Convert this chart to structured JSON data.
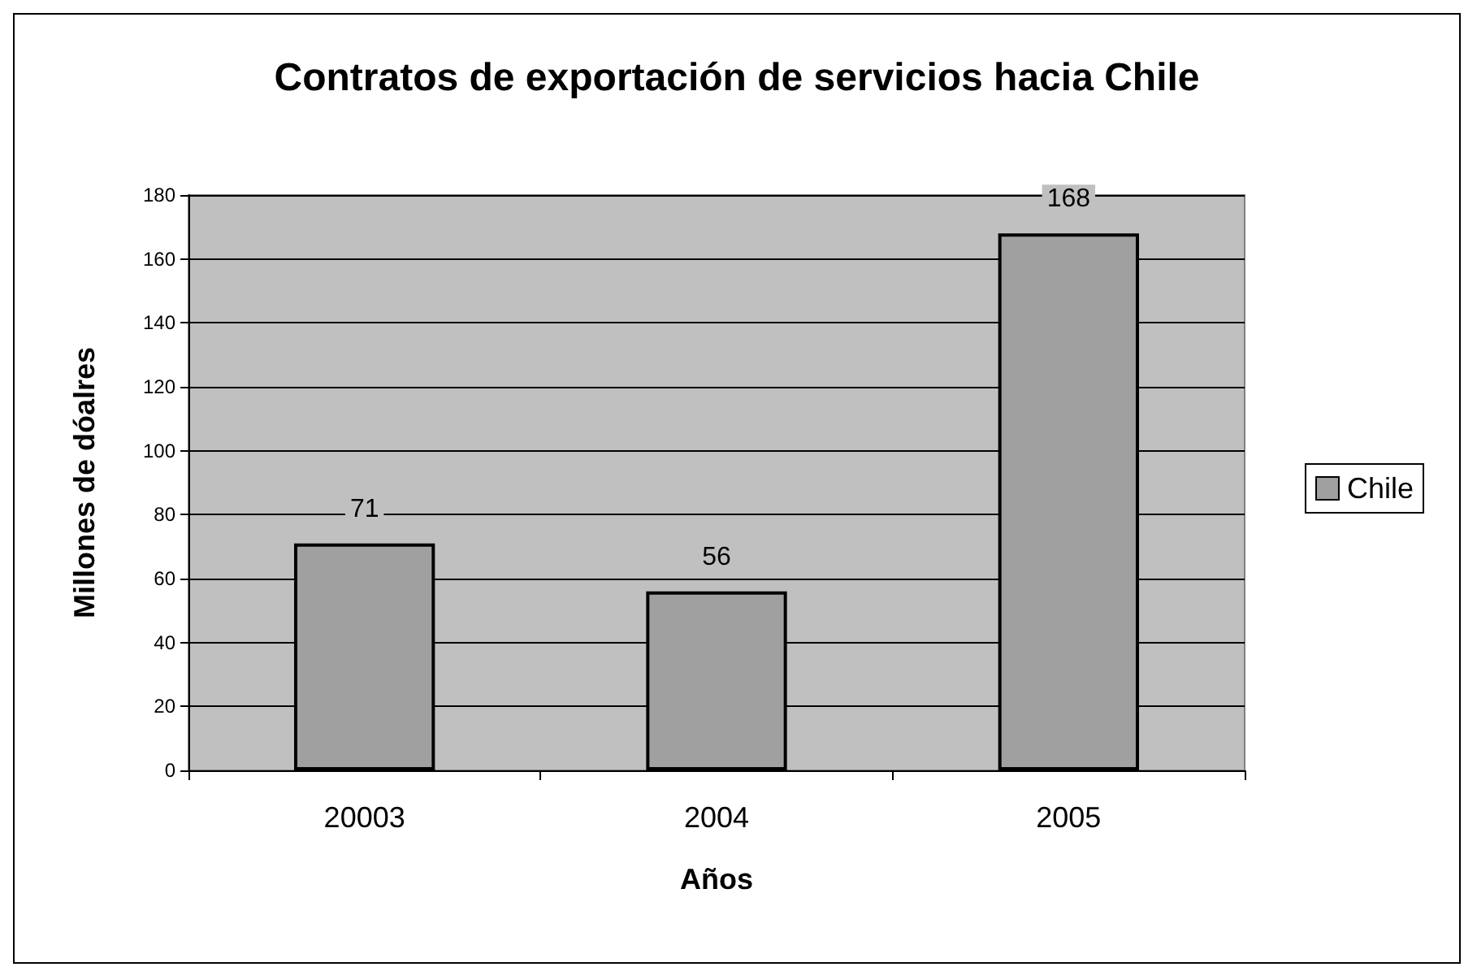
{
  "chart_data": {
    "type": "bar",
    "title": "Contratos de exportación de servicios hacia Chile",
    "xlabel": "Años",
    "ylabel": "Millones de dóalres",
    "categories": [
      "20003",
      "2004",
      "2005"
    ],
    "series": [
      {
        "name": "Chile",
        "color": "#a0a0a0",
        "values": [
          71,
          56,
          168
        ]
      }
    ],
    "ylim": [
      0,
      180
    ],
    "yticks": [
      0,
      20,
      40,
      60,
      80,
      100,
      120,
      140,
      160,
      180
    ],
    "grid": "y",
    "legend": "right",
    "data_labels": true
  }
}
